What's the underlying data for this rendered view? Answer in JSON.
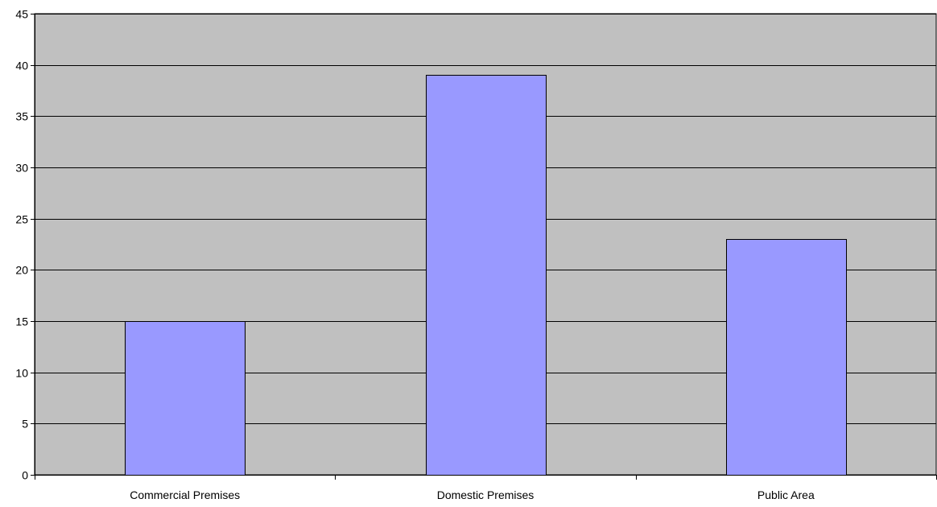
{
  "chart_data": {
    "type": "bar",
    "title": "",
    "xlabel": "",
    "ylabel": "",
    "categories": [
      "Commercial Premises",
      "Domestic Premises",
      "Public Area"
    ],
    "values": [
      15,
      39,
      23
    ],
    "ylim": [
      0,
      45
    ],
    "yticks": [
      0,
      5,
      10,
      15,
      20,
      25,
      30,
      35,
      40,
      45
    ],
    "grid": true,
    "legend": "none",
    "colors": {
      "plot_background": "#C0C0C0",
      "bar_fill": "#9999FF",
      "bar_stroke": "#000000",
      "gridline": "#000000",
      "axis": "#000000"
    }
  }
}
